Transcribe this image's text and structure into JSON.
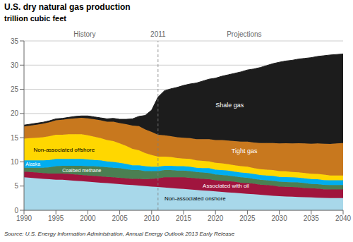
{
  "chart_data": {
    "type": "area",
    "stacked": true,
    "title": "U.S. dry natural gas production",
    "subtitle": "trillion cubic feet",
    "source": "Source:  U.S. Energy Information Administration, Annual Energy Outlook 2013 Early Release",
    "x": [
      1990,
      1991,
      1992,
      1993,
      1994,
      1995,
      1996,
      1997,
      1998,
      1999,
      2000,
      2001,
      2002,
      2003,
      2004,
      2005,
      2006,
      2007,
      2008,
      2009,
      2010,
      2011,
      2012,
      2013,
      2014,
      2015,
      2016,
      2017,
      2018,
      2019,
      2020,
      2021,
      2022,
      2023,
      2024,
      2025,
      2026,
      2027,
      2028,
      2029,
      2030,
      2031,
      2032,
      2033,
      2034,
      2035,
      2036,
      2037,
      2038,
      2039,
      2040
    ],
    "xlim": [
      1990,
      2040
    ],
    "xticks": [
      1990,
      1995,
      2000,
      2005,
      2010,
      2015,
      2020,
      2025,
      2030,
      2035,
      2040
    ],
    "ylim": [
      0,
      35
    ],
    "yticks": [
      0,
      5,
      10,
      15,
      20,
      25,
      30,
      35
    ],
    "grid": true,
    "annotations": [
      {
        "text": "History"
      },
      {
        "text": "Projections"
      },
      {
        "text": "2011",
        "x": 2011
      }
    ],
    "series": [
      {
        "name": "Non-associated onshore",
        "color": "#A8D8EA",
        "values": [
          6.8,
          6.7,
          6.6,
          6.5,
          6.4,
          6.3,
          6.3,
          6.2,
          6.1,
          6.0,
          5.9,
          5.8,
          5.7,
          5.6,
          5.5,
          5.4,
          5.3,
          5.2,
          5.1,
          5.0,
          4.9,
          4.8,
          4.7,
          4.6,
          4.5,
          4.4,
          4.3,
          4.2,
          4.1,
          4.0,
          3.9,
          3.8,
          3.7,
          3.6,
          3.5,
          3.4,
          3.3,
          3.2,
          3.1,
          3.0,
          2.9,
          2.85,
          2.8,
          2.75,
          2.7,
          2.65,
          2.6,
          2.55,
          2.5,
          2.5,
          2.5
        ]
      },
      {
        "name": "Associated with oil",
        "color": "#A0153E",
        "values": [
          1.2,
          1.2,
          1.2,
          1.2,
          1.2,
          1.3,
          1.3,
          1.3,
          1.3,
          1.3,
          1.3,
          1.3,
          1.3,
          1.3,
          1.3,
          1.3,
          1.3,
          1.3,
          1.4,
          1.4,
          1.6,
          1.8,
          2.1,
          2.2,
          2.3,
          2.4,
          2.4,
          2.4,
          2.4,
          2.4,
          2.3,
          2.3,
          2.3,
          2.3,
          2.2,
          2.2,
          2.2,
          2.1,
          2.1,
          2.1,
          2.0,
          2.0,
          2.0,
          2.0,
          1.9,
          1.9,
          1.9,
          1.8,
          1.8,
          1.8,
          1.8
        ]
      },
      {
        "name": "Coalbed methane",
        "color": "#4B7F52",
        "values": [
          0.8,
          0.9,
          1.0,
          1.1,
          1.3,
          1.5,
          1.6,
          1.7,
          1.8,
          1.9,
          1.9,
          2.0,
          2.0,
          2.0,
          2.0,
          2.0,
          1.9,
          1.8,
          1.8,
          1.7,
          1.6,
          1.5,
          1.5,
          1.5,
          1.4,
          1.4,
          1.4,
          1.3,
          1.3,
          1.3,
          1.2,
          1.2,
          1.2,
          1.1,
          1.1,
          1.1,
          1.0,
          1.0,
          1.0,
          1.0,
          1.0,
          1.0,
          1.0,
          1.0,
          1.0,
          0.9,
          0.9,
          0.9,
          0.9,
          0.9,
          0.9
        ]
      },
      {
        "name": "Alaska",
        "color": "#00AEEF",
        "values": [
          1.5,
          1.5,
          1.5,
          1.5,
          1.5,
          1.5,
          1.4,
          1.4,
          1.4,
          1.4,
          1.4,
          1.3,
          1.3,
          1.2,
          1.2,
          1.1,
          1.1,
          1.0,
          1.0,
          1.0,
          0.9,
          0.9,
          0.9,
          0.9,
          0.9,
          0.9,
          0.9,
          0.9,
          0.9,
          1.0,
          1.0,
          1.0,
          1.0,
          1.0,
          1.0,
          1.0,
          1.0,
          1.0,
          1.0,
          1.0,
          1.0,
          1.0,
          1.0,
          1.0,
          1.0,
          1.0,
          1.0,
          1.0,
          1.0,
          1.0,
          1.0
        ]
      },
      {
        "name": "Non-associated offshore",
        "color": "#FFD700",
        "values": [
          4.5,
          4.6,
          4.7,
          4.8,
          4.9,
          5.0,
          5.0,
          5.1,
          5.1,
          5.1,
          5.0,
          4.8,
          4.6,
          4.4,
          4.3,
          4.0,
          3.7,
          3.4,
          3.1,
          2.7,
          2.4,
          2.1,
          1.9,
          1.8,
          1.7,
          1.6,
          1.6,
          1.5,
          1.5,
          1.4,
          1.4,
          1.4,
          1.3,
          1.3,
          1.3,
          1.3,
          1.2,
          1.2,
          1.2,
          1.2,
          1.2,
          1.2,
          1.1,
          1.1,
          1.1,
          1.1,
          1.1,
          1.1,
          1.0,
          1.0,
          1.0
        ]
      },
      {
        "name": "Tight gas",
        "color": "#C8781E",
        "values": [
          2.5,
          2.6,
          2.7,
          2.8,
          2.9,
          3.0,
          3.1,
          3.2,
          3.3,
          3.4,
          3.5,
          3.6,
          3.7,
          3.8,
          4.0,
          4.2,
          4.5,
          4.8,
          5.0,
          4.9,
          4.8,
          4.5,
          4.4,
          4.3,
          4.3,
          4.3,
          4.3,
          4.4,
          4.5,
          4.6,
          4.7,
          4.8,
          4.9,
          5.0,
          5.1,
          5.2,
          5.3,
          5.4,
          5.5,
          5.6,
          5.7,
          5.8,
          5.9,
          6.0,
          6.1,
          6.2,
          6.3,
          6.4,
          6.5,
          6.6,
          6.7
        ]
      },
      {
        "name": "Shale gas",
        "color": "#1C1C1C",
        "values": [
          0.3,
          0.3,
          0.3,
          0.3,
          0.3,
          0.3,
          0.3,
          0.3,
          0.4,
          0.4,
          0.5,
          0.5,
          0.5,
          0.6,
          0.7,
          0.8,
          1.0,
          1.4,
          2.0,
          2.9,
          4.5,
          7.8,
          9.2,
          9.8,
          10.3,
          10.8,
          11.2,
          11.6,
          12.0,
          12.4,
          12.8,
          13.2,
          13.6,
          14.0,
          14.4,
          14.8,
          15.2,
          15.6,
          16.0,
          16.4,
          16.8,
          17.0,
          17.2,
          17.4,
          17.6,
          17.8,
          18.0,
          18.2,
          18.4,
          18.4,
          18.4
        ]
      }
    ]
  }
}
